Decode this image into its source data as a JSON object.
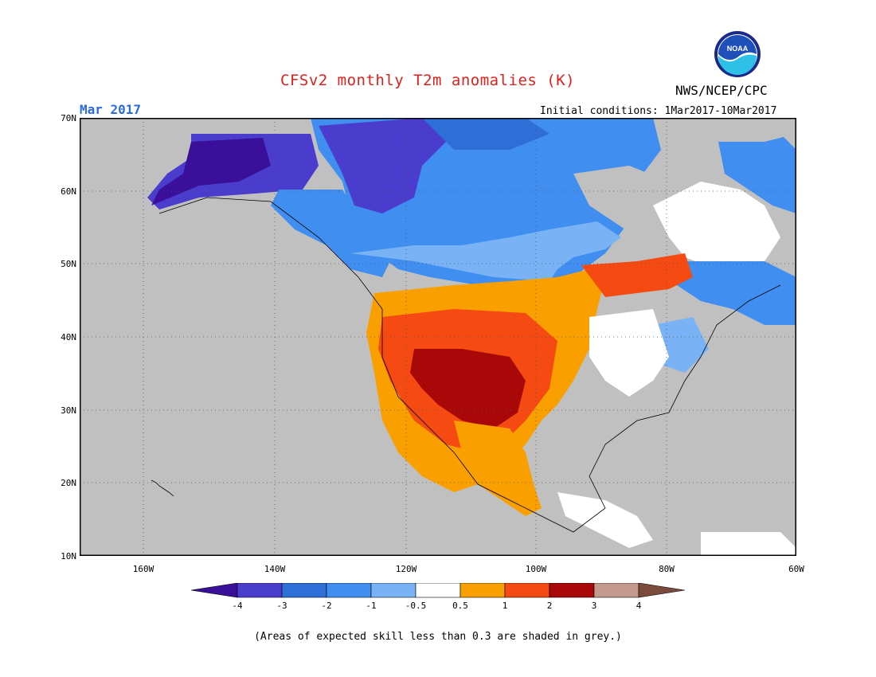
{
  "header": {
    "title": "CFSv2 monthly T2m anomalies (K)",
    "agency": "NWS/NCEP/CPC",
    "period": "Mar 2017",
    "initial_conditions": "Initial conditions: 1Mar2017-10Mar2017",
    "logo_text": "NOAA"
  },
  "colors": {
    "title": "#e0201c",
    "period": "#2a6be0",
    "grey": "#c0c0c0",
    "below": [
      "#3a0f9a",
      "#4a3ccc",
      "#2d6fd6",
      "#3f8ef0",
      "#79b2f5"
    ],
    "neutral": "#ffffff",
    "above": [
      "#f9a000",
      "#f54a12",
      "#a80808",
      "#c49a8c",
      "#7a4a3c"
    ]
  },
  "axes": {
    "latitudes": [
      "70N",
      "60N",
      "50N",
      "40N",
      "30N",
      "20N",
      "10N"
    ],
    "longitudes": [
      "160W",
      "140W",
      "120W",
      "100W",
      "80W",
      "60W"
    ]
  },
  "colorbar": {
    "labels": [
      "-4",
      "-3",
      "-2",
      "-1",
      "-0.5",
      "0.5",
      "1",
      "2",
      "3",
      "4"
    ]
  },
  "footnote": "(Areas of expected skill less than 0.3 are shaded in grey.)"
}
